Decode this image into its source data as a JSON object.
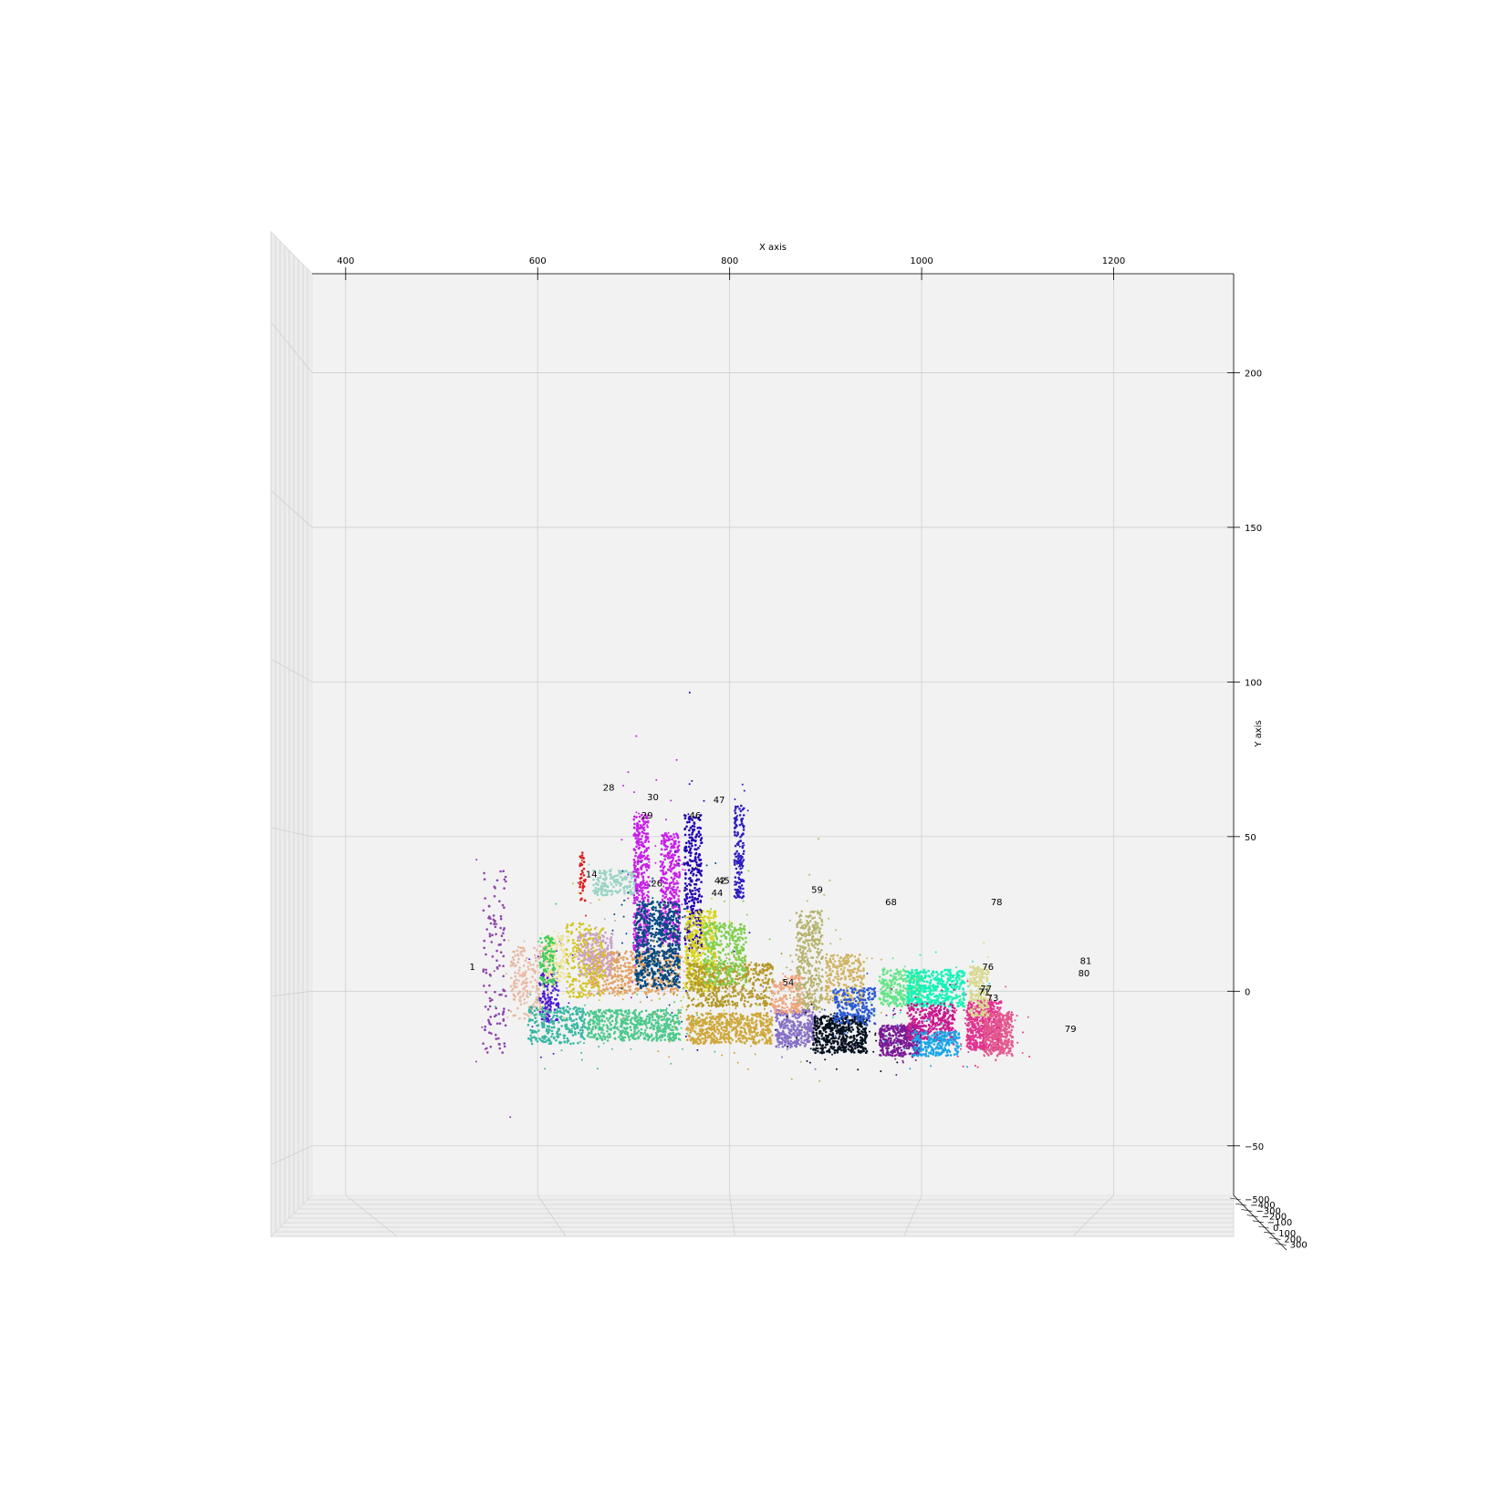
{
  "chart_data": {
    "type": "scatter",
    "projection": "3d",
    "xlabel": "X axis",
    "ylabel": "Y axis",
    "zlabel": "",
    "xlim": [
      365,
      1325
    ],
    "ylim": [
      -66,
      232
    ],
    "x_ticks": [
      400,
      600,
      800,
      1000,
      1200
    ],
    "y_ticks": [
      -50,
      0,
      50,
      100,
      150,
      200
    ],
    "y_tick_labels": [
      "−50",
      "0",
      "50",
      "100",
      "150",
      "200"
    ],
    "z_ticks": [
      -500,
      -400,
      -300,
      -200,
      -100,
      0,
      100,
      200,
      300
    ],
    "z_tick_labels": [
      "−500",
      "−400",
      "−300",
      "−200",
      "−100",
      "0",
      "100",
      "200",
      "300"
    ],
    "grid": true,
    "clusters": [
      {
        "label": "",
        "color": "#8e44ad",
        "x": 555,
        "y": 10,
        "w": 12,
        "h": 30,
        "n": 120
      },
      {
        "label": "",
        "color": "#e9b9a2",
        "x": 592,
        "y": 3,
        "w": 20,
        "h": 12,
        "n": 200
      },
      {
        "label": "",
        "color": "#4b1fd6",
        "x": 612,
        "y": -2,
        "w": 10,
        "h": 8,
        "n": 120
      },
      {
        "label": "",
        "color": "#39b8a4",
        "x": 620,
        "y": -11,
        "w": 30,
        "h": 6,
        "n": 260
      },
      {
        "label": "",
        "color": "#ede39a",
        "x": 620,
        "y": 10,
        "w": 12,
        "h": 8,
        "n": 140
      },
      {
        "label": "",
        "color": "#3ecf5a",
        "x": 610,
        "y": 10,
        "w": 8,
        "h": 8,
        "n": 90
      },
      {
        "label": "",
        "color": "#e2a063",
        "x": 700,
        "y": 6,
        "w": 48,
        "h": 7,
        "n": 500
      },
      {
        "label": "",
        "color": "#4dc98e",
        "x": 700,
        "y": -11,
        "w": 48,
        "h": 5,
        "n": 500
      },
      {
        "label": "",
        "color": "#c9a1c8",
        "x": 660,
        "y": 12,
        "w": 18,
        "h": 7,
        "n": 220
      },
      {
        "label": "",
        "color": "#99d3c3",
        "x": 680,
        "y": 35,
        "w": 22,
        "h": 4,
        "n": 160
      },
      {
        "label": "",
        "color": "#d4c622",
        "x": 650,
        "y": 10,
        "w": 20,
        "h": 12,
        "n": 200
      },
      {
        "label": "",
        "color": "#c71fe8",
        "x": 708,
        "y": 35,
        "w": 8,
        "h": 22,
        "n": 350
      },
      {
        "label": "",
        "color": "#c71fe8",
        "x": 738,
        "y": 33,
        "w": 10,
        "h": 18,
        "n": 350
      },
      {
        "label": "",
        "color": "#034a84",
        "x": 725,
        "y": 15,
        "w": 23,
        "h": 14,
        "n": 600
      },
      {
        "label": "",
        "color": "#2000b2",
        "x": 762,
        "y": 35,
        "w": 9,
        "h": 22,
        "n": 300
      },
      {
        "label": "",
        "color": "#d8d51f",
        "x": 770,
        "y": 13,
        "w": 16,
        "h": 13,
        "n": 400
      },
      {
        "label": "",
        "color": "#b59a2b",
        "x": 800,
        "y": 2,
        "w": 45,
        "h": 7,
        "n": 500
      },
      {
        "label": "",
        "color": "#cfa83a",
        "x": 800,
        "y": -12,
        "w": 45,
        "h": 5,
        "n": 500
      },
      {
        "label": "",
        "color": "#80cf4c",
        "x": 795,
        "y": 12,
        "w": 22,
        "h": 10,
        "n": 300
      },
      {
        "label": "",
        "color": "#2e1ebf",
        "x": 810,
        "y": 45,
        "w": 5,
        "h": 15,
        "n": 140
      },
      {
        "label": "",
        "color": "#b7b36f",
        "x": 883,
        "y": 10,
        "w": 14,
        "h": 16,
        "n": 350
      },
      {
        "label": "",
        "color": "#8771c7",
        "x": 868,
        "y": -12,
        "w": 20,
        "h": 6,
        "n": 300
      },
      {
        "label": "",
        "color": "#f0a67f",
        "x": 860,
        "y": -1,
        "w": 16,
        "h": 6,
        "n": 150
      },
      {
        "label": "",
        "color": "#05101f",
        "x": 915,
        "y": -14,
        "w": 28,
        "h": 6,
        "n": 450
      },
      {
        "label": "",
        "color": "#d0b465",
        "x": 920,
        "y": 4,
        "w": 20,
        "h": 8,
        "n": 250
      },
      {
        "label": "",
        "color": "#2b5ad6",
        "x": 930,
        "y": -5,
        "w": 22,
        "h": 6,
        "n": 200
      },
      {
        "label": "",
        "color": "#66e58c",
        "x": 978,
        "y": 1,
        "w": 22,
        "h": 6,
        "n": 280
      },
      {
        "label": "",
        "color": "#7a1a96",
        "x": 978,
        "y": -16,
        "w": 22,
        "h": 5,
        "n": 350
      },
      {
        "label": "",
        "color": "#16f2b9",
        "x": 1015,
        "y": 1,
        "w": 30,
        "h": 6,
        "n": 450
      },
      {
        "label": "",
        "color": "#c9198f",
        "x": 1010,
        "y": -10,
        "w": 25,
        "h": 6,
        "n": 300
      },
      {
        "label": "",
        "color": "#19a6e8",
        "x": 1015,
        "y": -17,
        "w": 25,
        "h": 4,
        "n": 220
      },
      {
        "label": "",
        "color": "#e2338f",
        "x": 1065,
        "y": -11,
        "w": 18,
        "h": 8,
        "n": 500
      },
      {
        "label": "",
        "color": "#e35a8f",
        "x": 1080,
        "y": -14,
        "w": 15,
        "h": 7,
        "n": 300
      },
      {
        "label": "",
        "color": "#d7d98e",
        "x": 1060,
        "y": 0,
        "w": 10,
        "h": 8,
        "n": 180
      },
      {
        "label": "",
        "color": "#df1c1c",
        "x": 647,
        "y": 37,
        "w": 3,
        "h": 8,
        "n": 40
      }
    ],
    "annotations": [
      {
        "text": "1",
        "x": 529,
        "y": 8
      },
      {
        "text": "14",
        "x": 650,
        "y": 38
      },
      {
        "text": "28",
        "x": 668,
        "y": 66
      },
      {
        "text": "29",
        "x": 708,
        "y": 57
      },
      {
        "text": "30",
        "x": 714,
        "y": 63
      },
      {
        "text": "26",
        "x": 718,
        "y": 35
      },
      {
        "text": "46",
        "x": 758,
        "y": 57
      },
      {
        "text": "47",
        "x": 783,
        "y": 62
      },
      {
        "text": "45",
        "x": 788,
        "y": 36
      },
      {
        "text": "42",
        "x": 784,
        "y": 36
      },
      {
        "text": "44",
        "x": 781,
        "y": 32
      },
      {
        "text": "54",
        "x": 855,
        "y": 3
      },
      {
        "text": "59",
        "x": 885,
        "y": 33
      },
      {
        "text": "68",
        "x": 962,
        "y": 29
      },
      {
        "text": "78",
        "x": 1072,
        "y": 29
      },
      {
        "text": "76",
        "x": 1063,
        "y": 8
      },
      {
        "text": "77",
        "x": 1061,
        "y": 1
      },
      {
        "text": "71",
        "x": 1059,
        "y": 0
      },
      {
        "text": "73",
        "x": 1068,
        "y": -2
      },
      {
        "text": "79",
        "x": 1149,
        "y": -12
      },
      {
        "text": "81",
        "x": 1165,
        "y": 10
      },
      {
        "text": "80",
        "x": 1163,
        "y": 6
      }
    ]
  }
}
